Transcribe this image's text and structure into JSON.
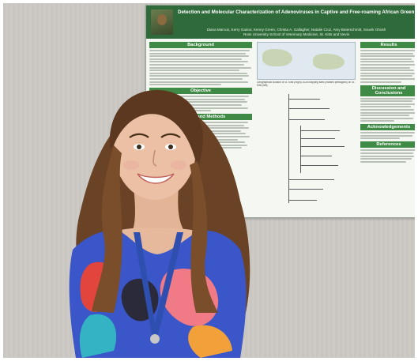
{
  "poster": {
    "title": "Detection and Molecular Characterization of Adenoviruses in Captive and Free-roaming African Green Monkeys (Chlorocebus sabaeus): Evidence for Possible Recombination and Cross-species Transmission",
    "authors": "Diana Marcus, Kerry Gainor, Kenny Green, Christa A. Gallagher, Natalie Cruz, Amy Beierschmitt, Souvik Ghosh",
    "affiliation": "Ross University School of Veterinary Medicine, St. Kitts and Nevis",
    "sections": {
      "background": "Background",
      "objective": "Objective",
      "materials_methods": "Materials and Methods",
      "results": "Results",
      "discussion": "Discussion and Conclusions",
      "acknowledgements": "Acknowledgements",
      "references": "References"
    },
    "figure_caption": "Geographical location of St. Kitts (Right). AGM trapping sites (marked pentagons) on St. Kitts (left)."
  },
  "colors": {
    "poster_header": "#2f6a3a",
    "section_bar": "#3f8a45",
    "wall": "#cbc8c3"
  }
}
